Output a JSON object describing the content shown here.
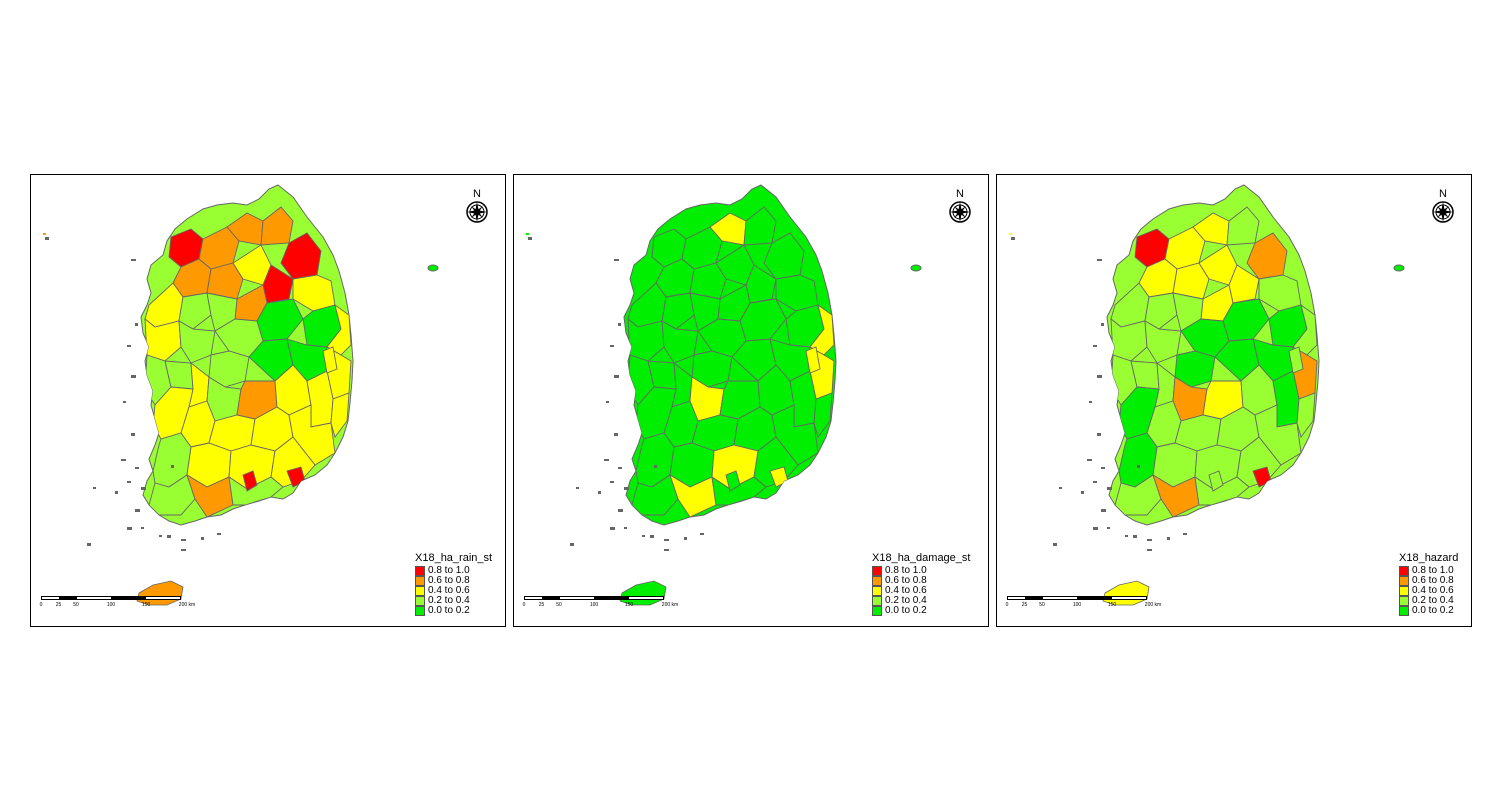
{
  "legend_classes": [
    {
      "label": "0.8 to 1.0",
      "color": "#ff0000"
    },
    {
      "label": "0.6 to 0.8",
      "color": "#ff9900"
    },
    {
      "label": "0.4 to 0.6",
      "color": "#ffff00"
    },
    {
      "label": "0.2 to 0.4",
      "color": "#99ff33"
    },
    {
      "label": "0.0 to 0.2",
      "color": "#00ee00"
    }
  ],
  "compass_label": "N",
  "scale_ticks": [
    "0",
    "25",
    "50",
    "100",
    "150",
    "200 km"
  ],
  "boundary_color": "#666666",
  "panels": [
    {
      "id": "rain",
      "legend_title": "X18_ha_rain_st",
      "dominant_class": 3
    },
    {
      "id": "damage",
      "legend_title": "X18_ha_damage_st",
      "dominant_class": 4
    },
    {
      "id": "hazard",
      "legend_title": "X18_hazard",
      "dominant_class": 3
    }
  ]
}
